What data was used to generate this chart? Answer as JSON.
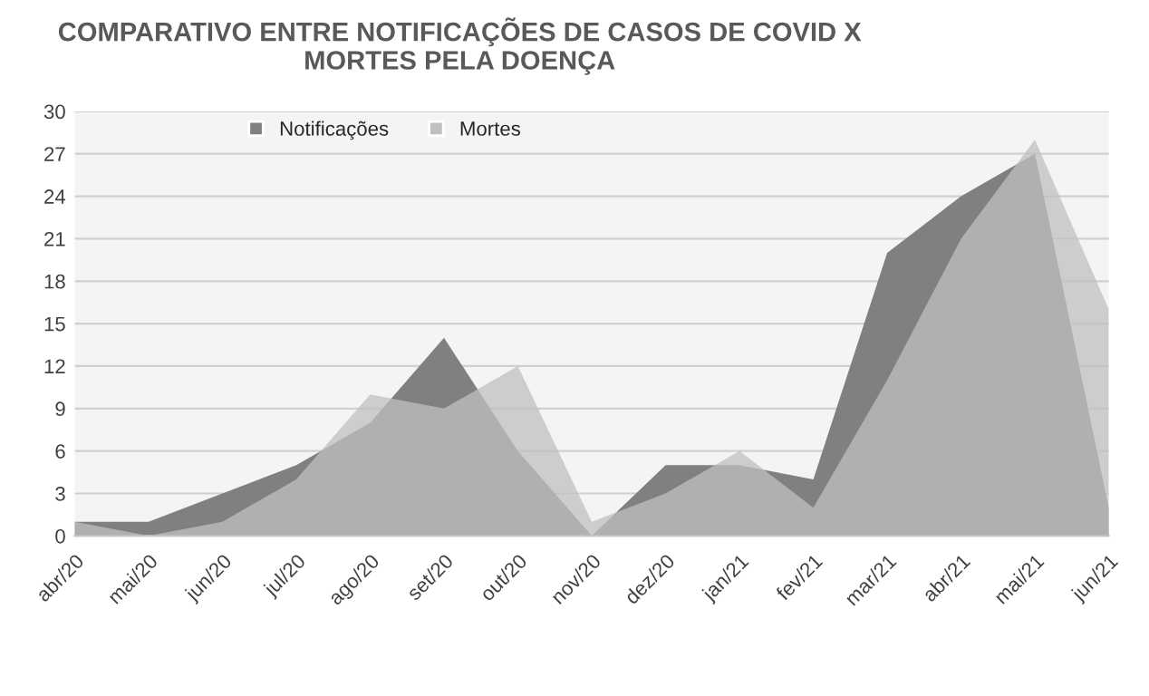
{
  "chart_data": {
    "type": "area",
    "title": "COMPARATIVO ENTRE NOTIFICAÇÕES DE CASOS DE COVID X\nMORTES PELA DOENÇA",
    "categories": [
      "abr/20",
      "mai/20",
      "jun/20",
      "jul/20",
      "ago/20",
      "set/20",
      "out/20",
      "nov/20",
      "dez/20",
      "jan/21",
      "fev/21",
      "mar/21",
      "abr/21",
      "mai/21",
      "jun/21"
    ],
    "series": [
      {
        "name": "Notificações",
        "color": "#808080",
        "values": [
          1,
          1,
          3,
          5,
          8,
          14,
          6,
          0,
          5,
          5,
          4,
          20,
          24,
          27,
          2
        ]
      },
      {
        "name": "Mortes",
        "color": "#c0c0c0",
        "values": [
          1,
          0,
          1,
          4,
          10,
          9,
          12,
          1,
          3,
          6,
          2,
          11,
          21,
          28,
          16
        ]
      }
    ],
    "ylim": [
      0,
      30
    ],
    "yticks": [
      0,
      3,
      6,
      9,
      12,
      15,
      18,
      21,
      24,
      27,
      30
    ],
    "grid": "y",
    "legend": "top"
  }
}
